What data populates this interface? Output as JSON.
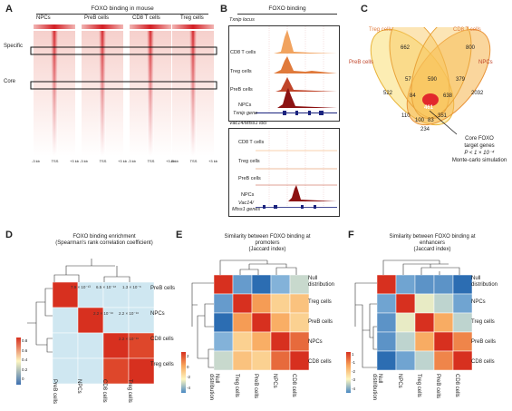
{
  "panels": {
    "A": {
      "letter": "A",
      "title": "FOXO binding in mouse",
      "columns": [
        "NPCs",
        "PreB cells",
        "CD8 T cells",
        "Treg cells"
      ],
      "row_labels": {
        "specific": "Specific",
        "core": "Core"
      },
      "ticks": [
        [
          "-3 kb",
          "TSS",
          "+3 kb"
        ],
        [
          "-3 kb",
          "TSS",
          "+3 kb"
        ],
        [
          "-3 kb",
          "TSS",
          "+3 kb"
        ],
        [
          "-3 kb",
          "TSS",
          "+3 kb"
        ]
      ]
    },
    "B": {
      "letter": "B",
      "title": "FOXO binding",
      "locus1": "Txnip locus",
      "locus1_tracks": [
        "CD8 T cells",
        "Treg cells",
        "PreB cells",
        "NPCs"
      ],
      "locus1_gene": "Txnip gene",
      "locus2": "Vac14/Mtss1 loci",
      "locus2_tracks": [
        "CD8 T cells",
        "Treg cells",
        "PreB cells",
        "NPCs"
      ],
      "locus2_gene": "Vac14/",
      "locus2_gene2": "Mtss1 genes"
    },
    "C": {
      "letter": "C",
      "sets": {
        "treg": "Treg cells",
        "cd8": "CD8 T cells",
        "preb": "PreB cells",
        "npcs": "NPCs"
      },
      "counts": [
        "662",
        "800",
        "57",
        "590",
        "379",
        "522",
        "84",
        "638",
        "2032",
        "110",
        "461",
        "351",
        "100",
        "83",
        "234"
      ],
      "annotation": [
        "Core FOXO",
        "target genes",
        "P < 1 × 10⁻⁴",
        "Monte-carlo simulation"
      ]
    },
    "D": {
      "letter": "D",
      "title": [
        "FOXO binding enrichment",
        "(Spearman's rank correlation coefficient)"
      ],
      "row_labels": [
        "PreB cells",
        "NPCs",
        "CD8 cells",
        "Treg cells"
      ],
      "col_labels": [
        "PreB cells",
        "NPCs",
        "CD8 cells",
        "Treg cells"
      ],
      "cell_values": [
        "7.9 × 10⁻¹³",
        "6.5 × 10⁻¹⁸",
        "1.3 × 10⁻⁸",
        "2.2 × 10⁻¹⁶",
        "2.2 × 10⁻¹⁶",
        "2.2 × 10⁻¹⁶"
      ],
      "legend_ticks": [
        "0.8",
        "0.6",
        "0.4",
        "0.2",
        "0"
      ]
    },
    "E": {
      "letter": "E",
      "title": [
        "Similarity between FOXO binding at",
        "promoters",
        "(Jaccard index)"
      ],
      "row_labels": [
        "Null",
        "distribution",
        "Treg cells",
        "PreB cells",
        "NPCs",
        "CD8 cells"
      ],
      "col_labels": [
        "Null distribution",
        "Treg cells",
        "PreB cells",
        "NPCs",
        "CD8 cells"
      ],
      "legend_ticks": [
        "2",
        "0",
        "-2",
        "-4"
      ]
    },
    "F": {
      "letter": "F",
      "title": [
        "Similarity between FOXO binding at",
        "enhancers",
        "(Jaccard index)"
      ],
      "row_labels": [
        "Null",
        "distribution",
        "NPCs",
        "Treg cells",
        "PreB cells",
        "CD8 cells"
      ],
      "col_labels": [
        "Null distribution",
        "NPCs",
        "Treg cells",
        "PreB cells",
        "CD8 cells"
      ],
      "legend_ticks": [
        "1",
        "-1",
        "-2",
        "-3",
        "-4"
      ]
    }
  },
  "chart_data": [
    {
      "type": "heatmap",
      "id": "D",
      "rows": [
        "PreB cells",
        "NPCs",
        "CD8 cells",
        "Treg cells"
      ],
      "cols": [
        "PreB cells",
        "NPCs",
        "CD8 cells",
        "Treg cells"
      ],
      "values": [
        [
          1.0,
          0.15,
          0.15,
          0.15
        ],
        [
          0.15,
          1.0,
          0.15,
          0.15
        ],
        [
          0.15,
          0.15,
          1.0,
          0.95
        ],
        [
          0.15,
          0.15,
          0.95,
          1.0
        ]
      ],
      "colorscale": [
        "#3c6fb0",
        "#fdf6c0",
        "#d7301f"
      ]
    },
    {
      "type": "heatmap",
      "id": "E",
      "rows": [
        "Null distribution",
        "Treg cells",
        "PreB cells",
        "NPCs",
        "CD8 cells"
      ],
      "cols": [
        "Null distribution",
        "Treg cells",
        "PreB cells",
        "NPCs",
        "CD8 cells"
      ],
      "values": [
        [
          2.0,
          -3.5,
          -4.5,
          -3.0,
          -2.0
        ],
        [
          -3.5,
          2.0,
          0.5,
          -0.5,
          -0.2
        ],
        [
          -4.5,
          0.5,
          2.0,
          0.2,
          -0.5
        ],
        [
          -3.0,
          -0.5,
          0.2,
          2.0,
          1.2
        ],
        [
          -2.0,
          -0.2,
          -0.5,
          1.2,
          2.0
        ]
      ]
    },
    {
      "type": "heatmap",
      "id": "F",
      "rows": [
        "Null distribution",
        "NPCs",
        "Treg cells",
        "PreB cells",
        "CD8 cells"
      ],
      "cols": [
        "Null distribution",
        "NPCs",
        "Treg cells",
        "PreB cells",
        "CD8 cells"
      ],
      "values": [
        [
          1.0,
          -3.5,
          -3.8,
          -3.8,
          -4.5
        ],
        [
          -3.5,
          1.0,
          -2.0,
          -2.5,
          -3.5
        ],
        [
          -3.8,
          -2.0,
          1.0,
          -0.5,
          -2.5
        ],
        [
          -3.8,
          -2.5,
          -0.5,
          1.0,
          0.0
        ],
        [
          -4.5,
          -3.5,
          -2.5,
          0.0,
          1.0
        ]
      ]
    }
  ]
}
